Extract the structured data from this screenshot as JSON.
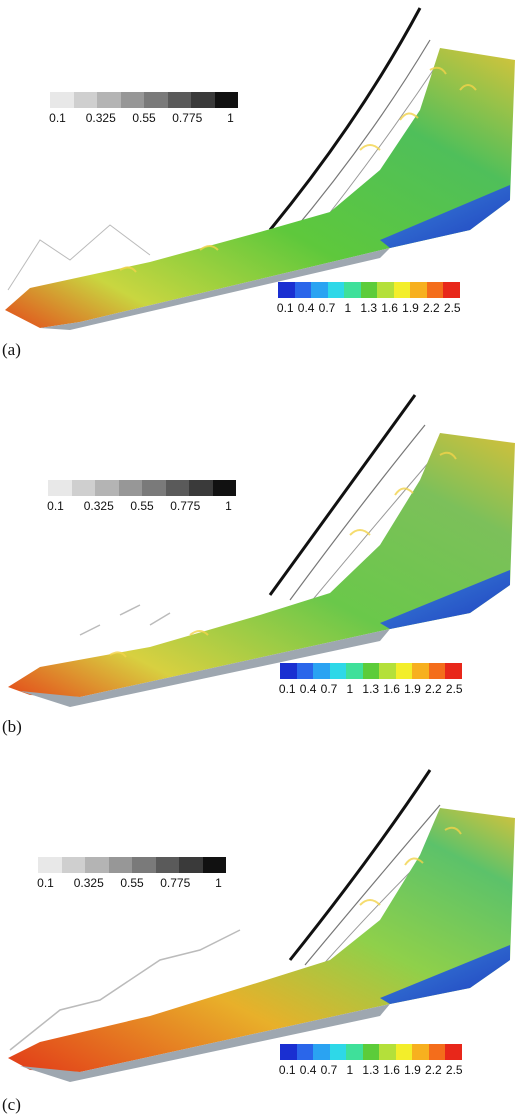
{
  "panels": [
    {
      "id": "a",
      "label": "(a)"
    },
    {
      "id": "b",
      "label": "(b)"
    },
    {
      "id": "c",
      "label": "(c)"
    }
  ],
  "gray_legend": {
    "ticks": [
      "0.1",
      "0.325",
      "0.55",
      "0.775",
      "1"
    ],
    "colors": [
      "#e8e8e8",
      "#cfcfcf",
      "#b4b4b4",
      "#979797",
      "#7a7a7a",
      "#5a5a5a",
      "#3a3a3a",
      "#111111"
    ]
  },
  "color_legend": {
    "ticks": [
      "0.1",
      "0.4",
      "0.7",
      "1",
      "1.3",
      "1.6",
      "1.9",
      "2.2",
      "2.5"
    ],
    "colors": [
      "#1a2fd1",
      "#2a66ea",
      "#2aa3f2",
      "#2ed8e8",
      "#3fe09a",
      "#5ccc3a",
      "#b4e03a",
      "#f3ee2a",
      "#f7b01f",
      "#f46d1b",
      "#e8271a"
    ]
  }
}
